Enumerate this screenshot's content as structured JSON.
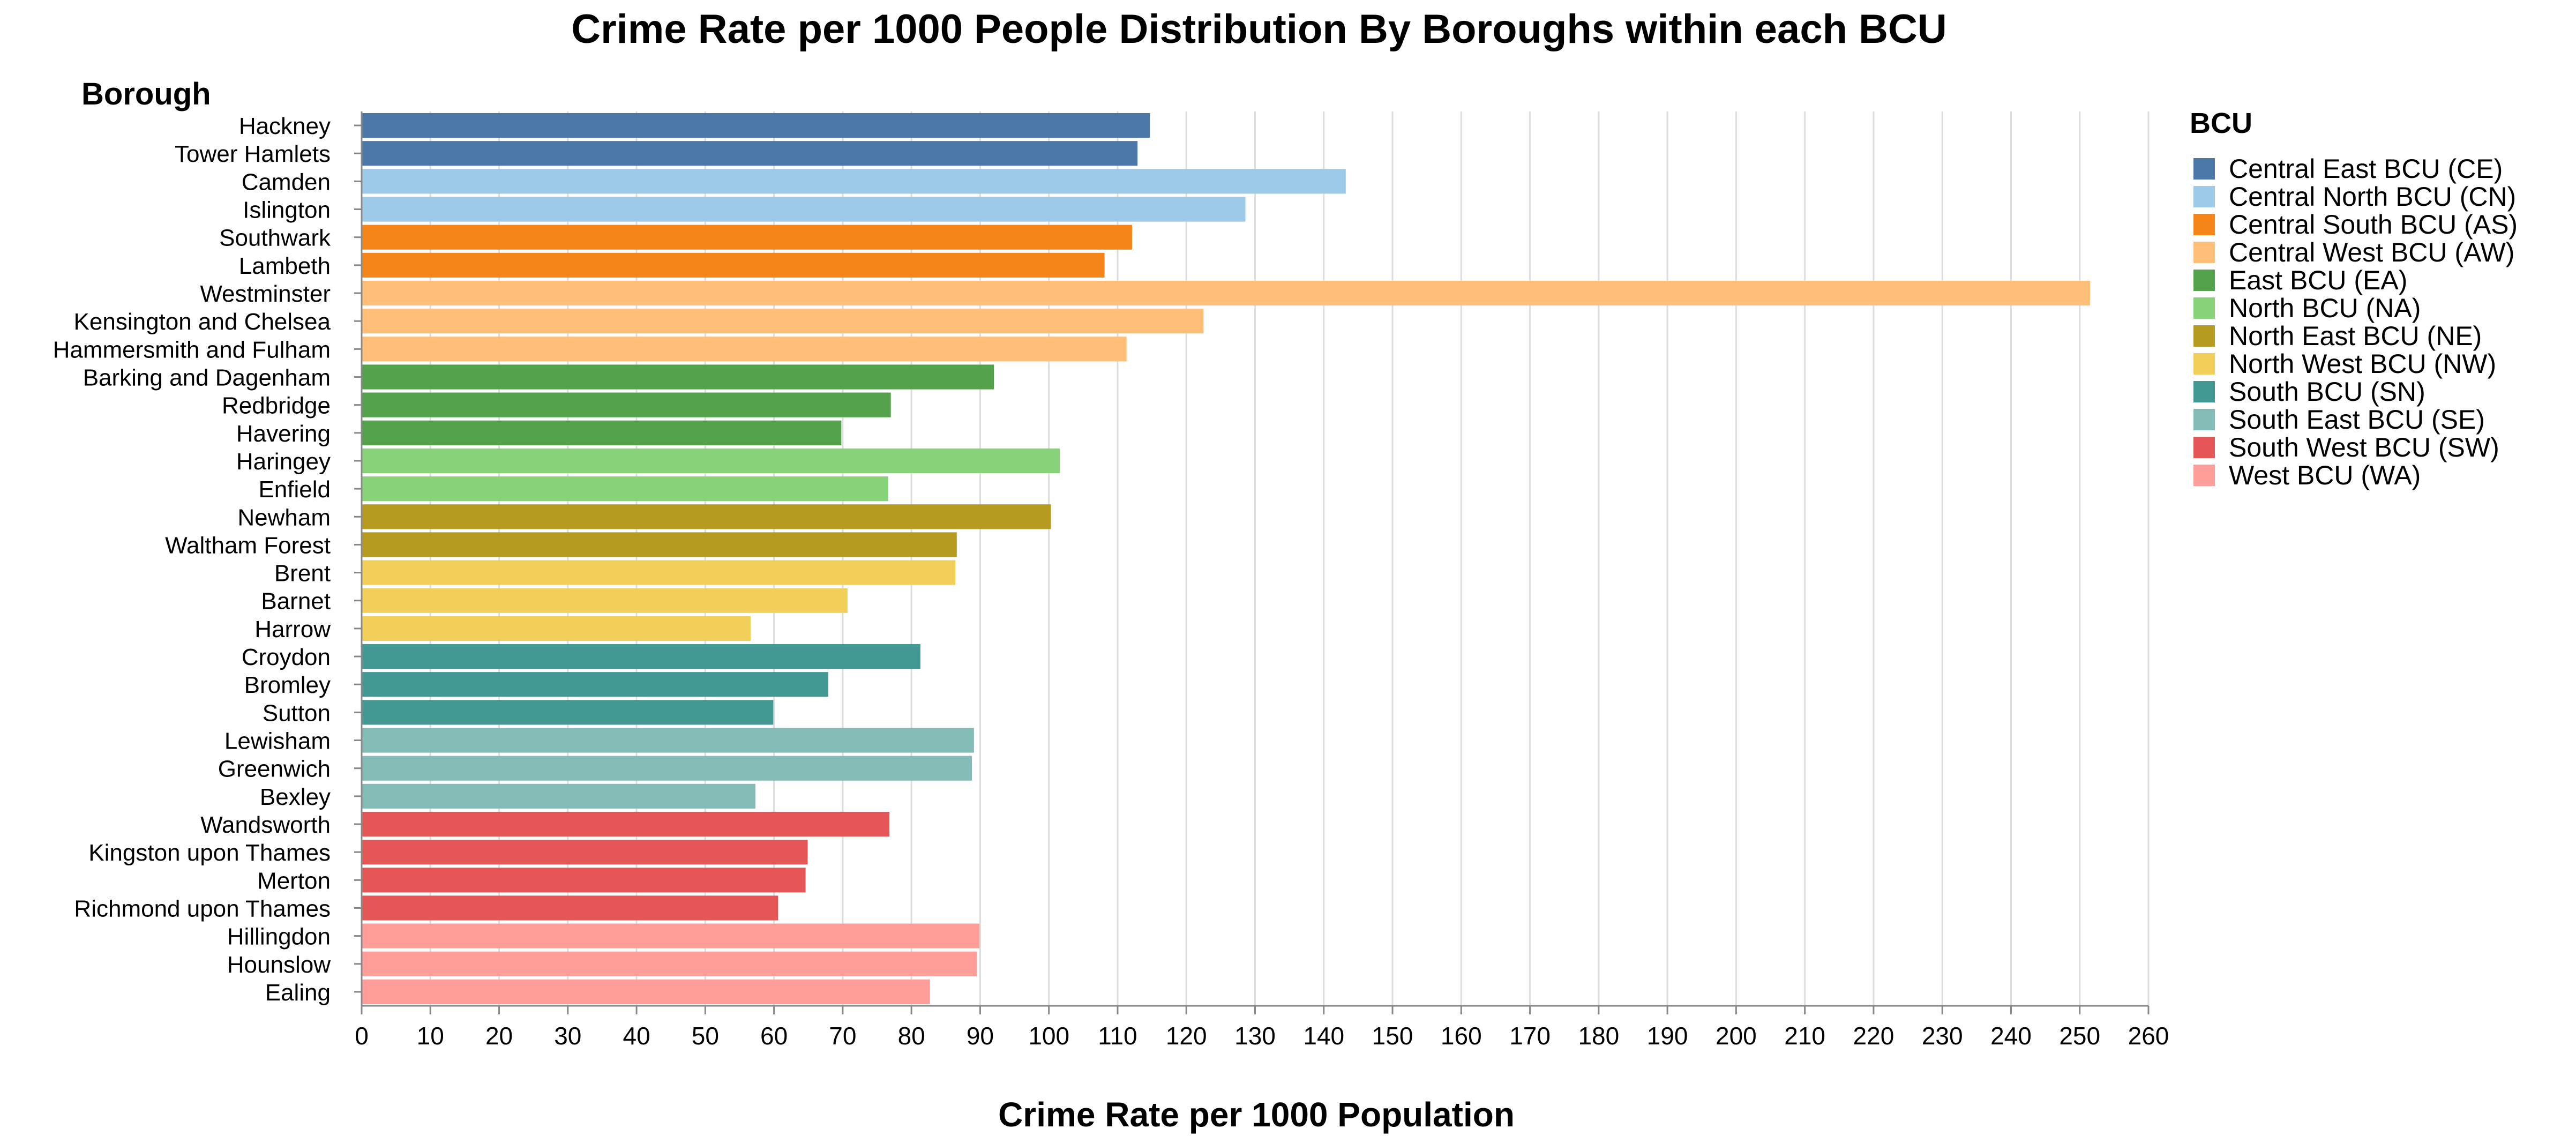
{
  "chart_data": {
    "type": "bar",
    "orientation": "horizontal",
    "title": "Crime Rate per 1000 People Distribution By Boroughs within each BCU",
    "xlabel": "Crime Rate per 1000 Population",
    "ylabel": "Borough",
    "xlim": [
      0,
      260
    ],
    "x_ticks": [
      0,
      10,
      20,
      30,
      40,
      50,
      60,
      70,
      80,
      90,
      100,
      110,
      120,
      130,
      140,
      150,
      160,
      170,
      180,
      190,
      200,
      210,
      220,
      230,
      240,
      250,
      260
    ],
    "grid": "vertical",
    "legend": {
      "title": "BCU",
      "position": "right",
      "entries": [
        {
          "name": "Central East BCU (CE)",
          "color": "#4c78a8"
        },
        {
          "name": "Central North BCU (CN)",
          "color": "#9ecae9"
        },
        {
          "name": "Central South BCU (AS)",
          "color": "#f58518"
        },
        {
          "name": "Central West BCU (AW)",
          "color": "#ffbf79"
        },
        {
          "name": "East BCU (EA)",
          "color": "#54a24b"
        },
        {
          "name": "North BCU (NA)",
          "color": "#88d27a"
        },
        {
          "name": "North East BCU (NE)",
          "color": "#b79a20"
        },
        {
          "name": "North West BCU (NW)",
          "color": "#f2cf5b"
        },
        {
          "name": "South BCU (SN)",
          "color": "#439894"
        },
        {
          "name": "South East BCU (SE)",
          "color": "#83bcb6"
        },
        {
          "name": "South West BCU (SW)",
          "color": "#e45756"
        },
        {
          "name": "West BCU (WA)",
          "color": "#ff9d98"
        }
      ]
    },
    "bars": [
      {
        "category": "Hackney",
        "value": 114.7,
        "bcu": "Central East BCU (CE)"
      },
      {
        "category": "Tower Hamlets",
        "value": 112.9,
        "bcu": "Central East BCU (CE)"
      },
      {
        "category": "Camden",
        "value": 143.2,
        "bcu": "Central North BCU (CN)"
      },
      {
        "category": "Islington",
        "value": 128.6,
        "bcu": "Central North BCU (CN)"
      },
      {
        "category": "Southwark",
        "value": 112.1,
        "bcu": "Central South BCU (AS)"
      },
      {
        "category": "Lambeth",
        "value": 108.1,
        "bcu": "Central South BCU (AS)"
      },
      {
        "category": "Westminster",
        "value": 251.5,
        "bcu": "Central West BCU (AW)"
      },
      {
        "category": "Kensington and Chelsea",
        "value": 122.5,
        "bcu": "Central West BCU (AW)"
      },
      {
        "category": "Hammersmith and Fulham",
        "value": 111.3,
        "bcu": "Central West BCU (AW)"
      },
      {
        "category": "Barking and Dagenham",
        "value": 92.0,
        "bcu": "East BCU (EA)"
      },
      {
        "category": "Redbridge",
        "value": 77.0,
        "bcu": "East BCU (EA)"
      },
      {
        "category": "Havering",
        "value": 69.8,
        "bcu": "East BCU (EA)"
      },
      {
        "category": "Haringey",
        "value": 101.6,
        "bcu": "North BCU (NA)"
      },
      {
        "category": "Enfield",
        "value": 76.6,
        "bcu": "North BCU (NA)"
      },
      {
        "category": "Newham",
        "value": 100.3,
        "bcu": "North East BCU (NE)"
      },
      {
        "category": "Waltham Forest",
        "value": 86.6,
        "bcu": "North East BCU (NE)"
      },
      {
        "category": "Brent",
        "value": 86.4,
        "bcu": "North West BCU (NW)"
      },
      {
        "category": "Barnet",
        "value": 70.7,
        "bcu": "North West BCU (NW)"
      },
      {
        "category": "Harrow",
        "value": 56.6,
        "bcu": "North West BCU (NW)"
      },
      {
        "category": "Croydon",
        "value": 81.3,
        "bcu": "South BCU (SN)"
      },
      {
        "category": "Bromley",
        "value": 67.9,
        "bcu": "South BCU (SN)"
      },
      {
        "category": "Sutton",
        "value": 59.9,
        "bcu": "South BCU (SN)"
      },
      {
        "category": "Lewisham",
        "value": 89.1,
        "bcu": "South East BCU (SE)"
      },
      {
        "category": "Greenwich",
        "value": 88.8,
        "bcu": "South East BCU (SE)"
      },
      {
        "category": "Bexley",
        "value": 57.3,
        "bcu": "South East BCU (SE)"
      },
      {
        "category": "Wandsworth",
        "value": 76.8,
        "bcu": "South West BCU (SW)"
      },
      {
        "category": "Kingston upon Thames",
        "value": 64.9,
        "bcu": "South West BCU (SW)"
      },
      {
        "category": "Merton",
        "value": 64.6,
        "bcu": "South West BCU (SW)"
      },
      {
        "category": "Richmond upon Thames",
        "value": 60.6,
        "bcu": "South West BCU (SW)"
      },
      {
        "category": "Hillingdon",
        "value": 89.9,
        "bcu": "West BCU (WA)"
      },
      {
        "category": "Hounslow",
        "value": 89.5,
        "bcu": "West BCU (WA)"
      },
      {
        "category": "Ealing",
        "value": 82.7,
        "bcu": "West BCU (WA)"
      }
    ]
  }
}
